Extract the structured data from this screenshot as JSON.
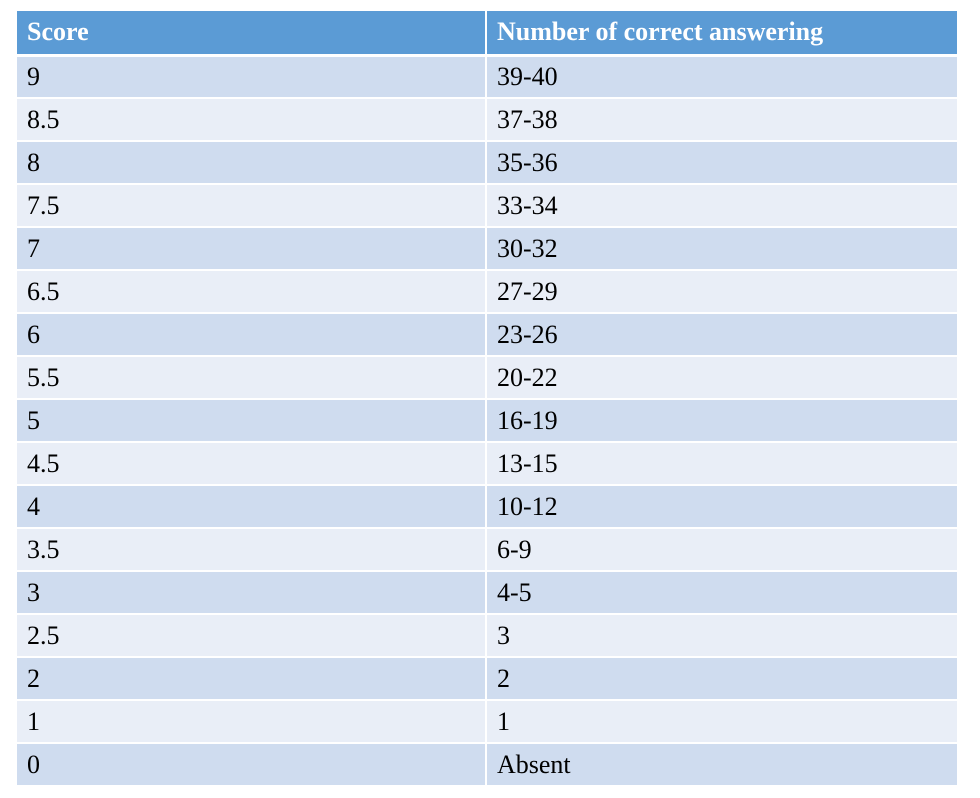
{
  "table": {
    "headers": [
      "Score",
      "Number of correct answering"
    ],
    "rows": [
      [
        "9",
        "39-40"
      ],
      [
        "8.5",
        "37-38"
      ],
      [
        "8",
        "35-36"
      ],
      [
        "7.5",
        "33-34"
      ],
      [
        "7",
        "30-32"
      ],
      [
        "6.5",
        "27-29"
      ],
      [
        "6",
        "23-26"
      ],
      [
        "5.5",
        "20-22"
      ],
      [
        "5",
        "16-19"
      ],
      [
        "4.5",
        "13-15"
      ],
      [
        "4",
        "10-12"
      ],
      [
        "3.5",
        "6-9"
      ],
      [
        "3",
        "4-5"
      ],
      [
        "2.5",
        "3"
      ],
      [
        "2",
        "2"
      ],
      [
        "1",
        "1"
      ],
      [
        "0",
        "Absent"
      ]
    ]
  },
  "colors": {
    "header_bg": "#5b9bd5",
    "row_odd_bg": "#cfdcef",
    "row_even_bg": "#e9eef7"
  }
}
